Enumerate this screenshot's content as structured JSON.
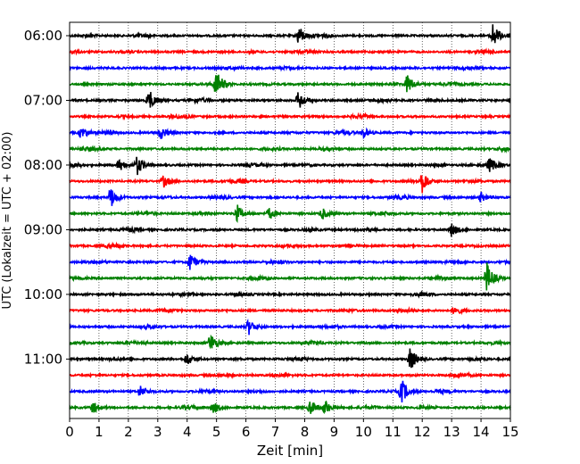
{
  "chart_data": {
    "type": "line",
    "xlabel": "Zeit  [min]",
    "ylabel": "UTC (Lokalzeit = UTC + 02:00)",
    "xlim": [
      0,
      15
    ],
    "x_ticks": [
      0,
      1,
      2,
      3,
      4,
      5,
      6,
      7,
      8,
      9,
      10,
      11,
      12,
      13,
      14,
      15
    ],
    "x_tick_labels": [
      "0",
      "1",
      "2",
      "3",
      "4",
      "5",
      "6",
      "7",
      "8",
      "9",
      "10",
      "11",
      "12",
      "13",
      "14",
      "15"
    ],
    "y_tick_labels": [
      "06:00",
      "07:00",
      "08:00",
      "09:00",
      "10:00",
      "11:00"
    ],
    "rows_per_hour": 4,
    "trace_colors": [
      "#000000",
      "#ff0000",
      "#0000ff",
      "#008000"
    ],
    "grid": "vertical dotted lines at each minute",
    "traces": [
      {
        "start": "06:00",
        "events": [
          [
            7.8,
            1.0
          ],
          [
            14.4,
            1.2
          ]
        ]
      },
      {
        "start": "06:15",
        "events": []
      },
      {
        "start": "06:30",
        "events": []
      },
      {
        "start": "06:45",
        "events": [
          [
            5.0,
            1.3
          ],
          [
            11.5,
            1.0
          ]
        ]
      },
      {
        "start": "07:00",
        "events": [
          [
            2.7,
            1.1
          ],
          [
            7.8,
            1.0
          ]
        ]
      },
      {
        "start": "07:15",
        "events": []
      },
      {
        "start": "07:30",
        "events": [
          [
            0.4,
            0.7
          ],
          [
            3.1,
            0.6
          ],
          [
            10.0,
            0.5
          ]
        ]
      },
      {
        "start": "07:45",
        "events": []
      },
      {
        "start": "08:00",
        "events": [
          [
            1.7,
            0.6
          ],
          [
            2.3,
            1.0
          ],
          [
            14.3,
            0.6
          ]
        ]
      },
      {
        "start": "08:15",
        "events": [
          [
            3.2,
            0.6
          ],
          [
            12.0,
            1.1
          ]
        ]
      },
      {
        "start": "08:30",
        "events": [
          [
            1.4,
            1.1
          ],
          [
            14.0,
            0.5
          ]
        ]
      },
      {
        "start": "08:45",
        "events": [
          [
            5.7,
            0.9
          ],
          [
            6.8,
            0.6
          ],
          [
            8.6,
            0.6
          ]
        ]
      },
      {
        "start": "09:00",
        "events": [
          [
            13.0,
            0.7
          ]
        ]
      },
      {
        "start": "09:15",
        "events": []
      },
      {
        "start": "09:30",
        "events": [
          [
            4.1,
            0.9
          ]
        ]
      },
      {
        "start": "09:45",
        "events": [
          [
            14.2,
            1.6
          ]
        ]
      },
      {
        "start": "10:00",
        "events": []
      },
      {
        "start": "10:15",
        "events": [
          [
            13.1,
            0.5
          ]
        ]
      },
      {
        "start": "10:30",
        "events": [
          [
            6.1,
            0.8
          ]
        ]
      },
      {
        "start": "10:45",
        "events": [
          [
            4.8,
            1.0
          ]
        ]
      },
      {
        "start": "11:00",
        "events": [
          [
            4.0,
            0.6
          ],
          [
            11.6,
            1.2
          ]
        ]
      },
      {
        "start": "11:15",
        "events": []
      },
      {
        "start": "11:30",
        "events": [
          [
            2.4,
            0.6
          ],
          [
            11.3,
            1.3
          ]
        ]
      },
      {
        "start": "11:45",
        "events": [
          [
            0.8,
            0.6
          ],
          [
            4.9,
            0.6
          ],
          [
            8.2,
            0.8
          ],
          [
            8.7,
            0.7
          ]
        ]
      }
    ]
  }
}
